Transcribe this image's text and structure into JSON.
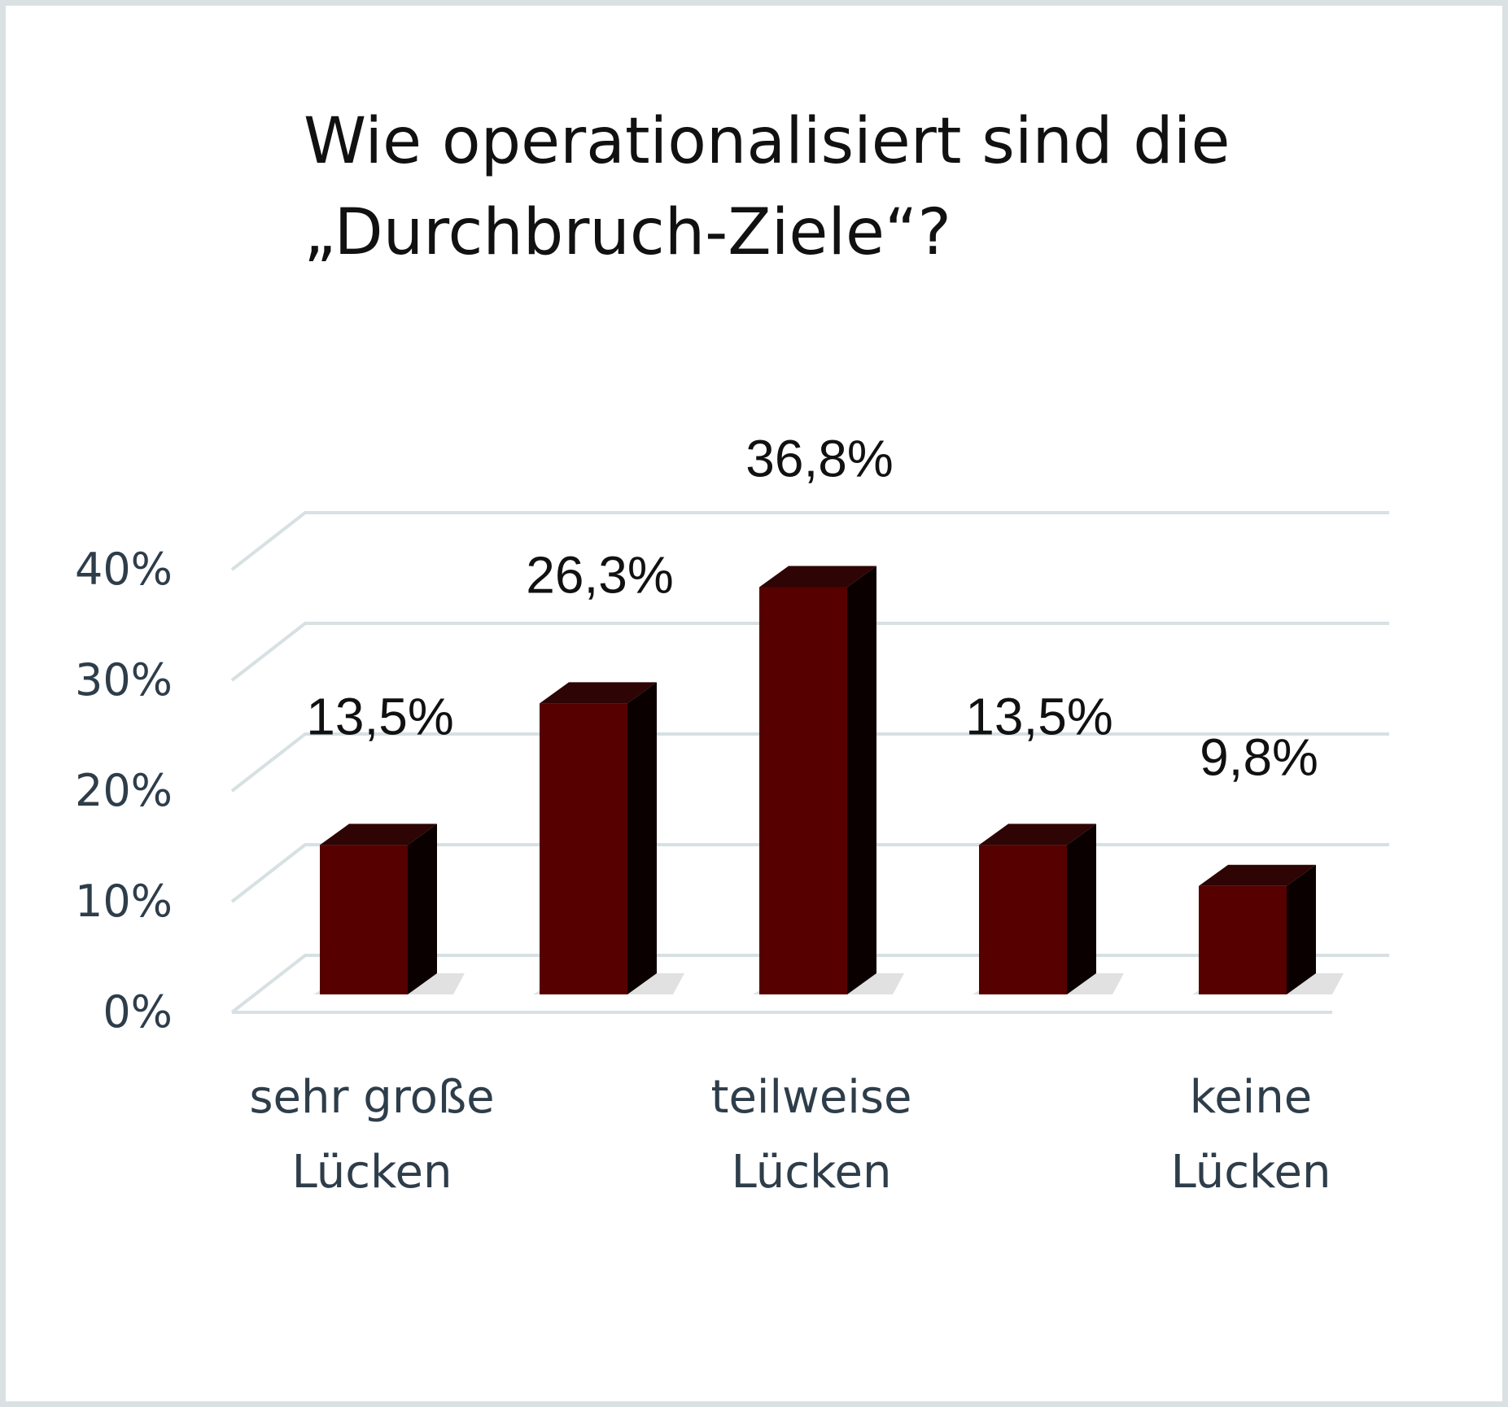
{
  "chart_data": {
    "type": "bar",
    "title_lines": [
      "Wie operationalisiert sind die",
      "„Durchbruch-Ziele“?"
    ],
    "categories": [
      "sehr große Lücken",
      "",
      "teilweise Lücken",
      "",
      "keine Lücken"
    ],
    "category_label_lines": [
      [
        "sehr große",
        "Lücken"
      ],
      [],
      [
        "teilweise",
        "Lücken"
      ],
      [],
      [
        "keine",
        "Lücken"
      ]
    ],
    "values": [
      13.5,
      26.3,
      36.8,
      13.5,
      9.8
    ],
    "value_labels": [
      "13,5%",
      "26,3%",
      "36,8%",
      "13,5%",
      "9,8%"
    ],
    "y_ticks": [
      "0%",
      "10%",
      "20%",
      "30%",
      "40%"
    ],
    "y_tick_values": [
      0,
      10,
      20,
      30,
      40
    ],
    "ylim": [
      0,
      40
    ],
    "grid": true,
    "three_d": true,
    "colors": {
      "bar_front": "#560000",
      "bar_top": "#2e0404",
      "bar_side": "#0a0000",
      "gridline": "#d7e0e2",
      "axis_text": "#2e3d4a",
      "label_text": "#111111",
      "frame": "#d9e1e3"
    }
  }
}
